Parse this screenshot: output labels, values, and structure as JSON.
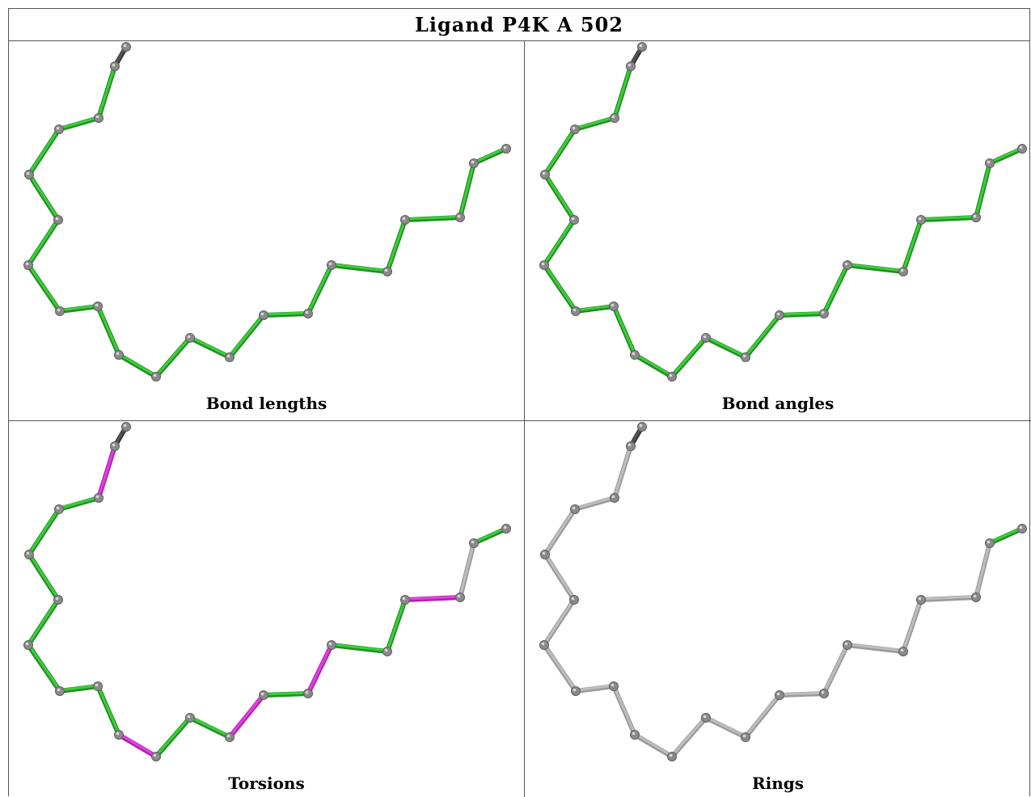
{
  "title": "Ligand P4K A 502",
  "colors": {
    "green": "#3dcc3d",
    "green_dark": "#1f8f1f",
    "magenta": "#e040e0",
    "gray_bond": "#bdbdbd",
    "atom": "#8a8a8a",
    "cap_bond": "#555555"
  },
  "panels": [
    {
      "caption": "Bond lengths",
      "bond_colors": [
        "cap",
        "green",
        "green",
        "green",
        "green",
        "green",
        "green",
        "green",
        "green",
        "green",
        "green",
        "green",
        "green",
        "green",
        "green",
        "green",
        "green",
        "green",
        "green"
      ]
    },
    {
      "caption": "Bond angles",
      "bond_colors": [
        "cap",
        "green",
        "green",
        "green",
        "green",
        "green",
        "green",
        "green",
        "green",
        "green",
        "green",
        "green",
        "green",
        "green",
        "green",
        "green",
        "green",
        "green",
        "green"
      ]
    },
    {
      "caption": "Torsions",
      "bond_colors": [
        "cap",
        "magenta",
        "green",
        "green",
        "green",
        "green",
        "green",
        "green",
        "green",
        "magenta",
        "green",
        "green",
        "magenta",
        "green",
        "magenta",
        "green",
        "green",
        "magenta",
        "gray"
      ]
    },
    {
      "caption": "Rings",
      "bond_colors": [
        "cap",
        "gray",
        "gray",
        "gray",
        "gray",
        "gray",
        "gray",
        "gray",
        "gray",
        "gray",
        "gray",
        "gray",
        "gray",
        "gray",
        "gray",
        "gray",
        "gray",
        "gray",
        "gray"
      ]
    }
  ]
}
